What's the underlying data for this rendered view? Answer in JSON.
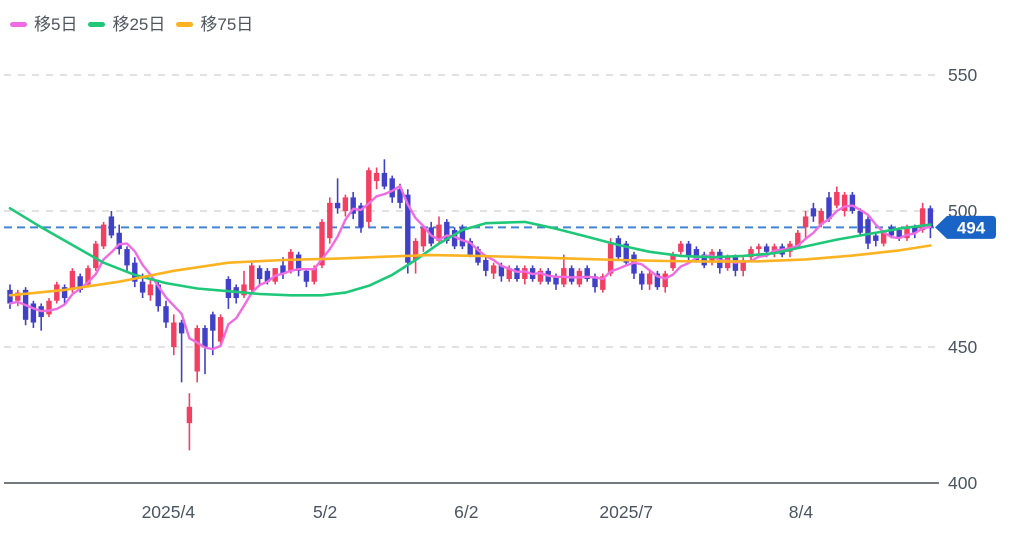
{
  "legend": {
    "items": [
      {
        "id": "ma5",
        "label": "移5日",
        "color": "#ef6ce2"
      },
      {
        "id": "ma25",
        "label": "移25日",
        "color": "#1ec878"
      },
      {
        "id": "ma75",
        "label": "移75日",
        "color": "#fbb321"
      }
    ]
  },
  "current_price": {
    "label": "494",
    "value": 494,
    "line_color": "#4484d4",
    "badge_color": "#1a64c8",
    "text_color": "#ffffff"
  },
  "colors": {
    "up_candle": "#f23f62",
    "down_candle": "#4040c8",
    "grid_line": "#d8d8d8",
    "axis_line": "#454e56",
    "tick_text": "#4a5561"
  },
  "chart_data": {
    "type": "candlestick",
    "title": "",
    "xlabel": "",
    "ylabel": "",
    "ylim": [
      400,
      550
    ],
    "grid": "dashed-horizontal",
    "legend_position": "top-left",
    "y_ticks": [
      {
        "label": "550",
        "value": 550,
        "style": "dashed"
      },
      {
        "label": "500",
        "value": 500,
        "style": "dashed"
      },
      {
        "label": "450",
        "value": 450,
        "style": "dashed"
      },
      {
        "label": "400",
        "value": 400,
        "style": "solid-axis"
      }
    ],
    "x_ticks": [
      {
        "label": "2025/4",
        "index": 20.3
      },
      {
        "label": "5/2",
        "index": 40.4
      },
      {
        "label": "6/2",
        "index": 58.5
      },
      {
        "label": "2025/7",
        "index": 79.0
      },
      {
        "label": "8/4",
        "index": 101.4
      }
    ],
    "candles_format": [
      "open",
      "high",
      "low",
      "close"
    ],
    "candles": [
      [
        471,
        473,
        464,
        466
      ],
      [
        467,
        471,
        465,
        470
      ],
      [
        471,
        472,
        458,
        460
      ],
      [
        466,
        467,
        457,
        459
      ],
      [
        465,
        466,
        456,
        461
      ],
      [
        462,
        468,
        461,
        467
      ],
      [
        467,
        474,
        466,
        473
      ],
      [
        472,
        473,
        466,
        468
      ],
      [
        471,
        479,
        470,
        478
      ],
      [
        476,
        477,
        470,
        471
      ],
      [
        473,
        480,
        472,
        479
      ],
      [
        479,
        489,
        478,
        488
      ],
      [
        487,
        496,
        486,
        495
      ],
      [
        498,
        500,
        490,
        491
      ],
      [
        492,
        495,
        484,
        486
      ],
      [
        486,
        487,
        478,
        480
      ],
      [
        481,
        483,
        472,
        474
      ],
      [
        474,
        477,
        468,
        470
      ],
      [
        469,
        475,
        467,
        473
      ],
      [
        473,
        474,
        463,
        465
      ],
      [
        465,
        467,
        457,
        459
      ],
      [
        450,
        462,
        447,
        459
      ],
      [
        459,
        460,
        437,
        455
      ],
      [
        422,
        433,
        412,
        428
      ],
      [
        441,
        458,
        437,
        457
      ],
      [
        457,
        458,
        440,
        450
      ],
      [
        462,
        463,
        447,
        456
      ],
      [
        452,
        462,
        450,
        461
      ],
      [
        475,
        476,
        464,
        468
      ],
      [
        472,
        473,
        466,
        468
      ],
      [
        469,
        478,
        468,
        473
      ],
      [
        471,
        481,
        470,
        480
      ],
      [
        479,
        480,
        473,
        475
      ],
      [
        478,
        479,
        473,
        474
      ],
      [
        474,
        479,
        473,
        479
      ],
      [
        480,
        483,
        475,
        477
      ],
      [
        478,
        486,
        477,
        485
      ],
      [
        484,
        485,
        476,
        478
      ],
      [
        478,
        479,
        472,
        474
      ],
      [
        474,
        480,
        473,
        479
      ],
      [
        480,
        497,
        479,
        496
      ],
      [
        490,
        505,
        488,
        503
      ],
      [
        503,
        512,
        499,
        501
      ],
      [
        500,
        506,
        498,
        505
      ],
      [
        505,
        507,
        497,
        499
      ],
      [
        502,
        503,
        492,
        494
      ],
      [
        496,
        516,
        494,
        515
      ],
      [
        511,
        516,
        508,
        514
      ],
      [
        514,
        519,
        508,
        509
      ],
      [
        512,
        513,
        503,
        505
      ],
      [
        508,
        510,
        501,
        503
      ],
      [
        506,
        508,
        477,
        481
      ],
      [
        482,
        490,
        477,
        489
      ],
      [
        487,
        495,
        485,
        494
      ],
      [
        494,
        496,
        487,
        488
      ],
      [
        489,
        498,
        488,
        495
      ],
      [
        496,
        497,
        488,
        489
      ],
      [
        493,
        494,
        486,
        487
      ],
      [
        494,
        495,
        486,
        487
      ],
      [
        489,
        490,
        483,
        484
      ],
      [
        486,
        487,
        480,
        481
      ],
      [
        482,
        483,
        476,
        478
      ],
      [
        477,
        481,
        475,
        480
      ],
      [
        480,
        481,
        474,
        476
      ],
      [
        475,
        480,
        474,
        479
      ],
      [
        479,
        480,
        474,
        475
      ],
      [
        475,
        480,
        473,
        479
      ],
      [
        479,
        480,
        474,
        475
      ],
      [
        474,
        479,
        473,
        478
      ],
      [
        478,
        479,
        473,
        474
      ],
      [
        476,
        477,
        471,
        473
      ],
      [
        473,
        484,
        472,
        479
      ],
      [
        479,
        480,
        473,
        474
      ],
      [
        473,
        479,
        472,
        478
      ],
      [
        479,
        480,
        474,
        475
      ],
      [
        476,
        477,
        470,
        472
      ],
      [
        471,
        477,
        470,
        476
      ],
      [
        477,
        490,
        476,
        488
      ],
      [
        490,
        491,
        482,
        483
      ],
      [
        488,
        489,
        480,
        481
      ],
      [
        484,
        485,
        475,
        477
      ],
      [
        477,
        478,
        471,
        473
      ],
      [
        473,
        478,
        471,
        477
      ],
      [
        477,
        478,
        471,
        472
      ],
      [
        472,
        478,
        470,
        477
      ],
      [
        479,
        485,
        478,
        484
      ],
      [
        485,
        489,
        484,
        488
      ],
      [
        488,
        489,
        482,
        483
      ],
      [
        486,
        487,
        481,
        482
      ],
      [
        484,
        485,
        479,
        480
      ],
      [
        481,
        486,
        480,
        485
      ],
      [
        485,
        486,
        477,
        479
      ],
      [
        479,
        484,
        478,
        483
      ],
      [
        483,
        484,
        476,
        478
      ],
      [
        478,
        483,
        476,
        482
      ],
      [
        483,
        487,
        482,
        486
      ],
      [
        486,
        488,
        484,
        487
      ],
      [
        487,
        488,
        483,
        485
      ],
      [
        485,
        488,
        483,
        487
      ],
      [
        487,
        488,
        483,
        484
      ],
      [
        485,
        489,
        483,
        488
      ],
      [
        487,
        493,
        486,
        492
      ],
      [
        494,
        500,
        490,
        498
      ],
      [
        501,
        503,
        496,
        498
      ],
      [
        495,
        501,
        494,
        500
      ],
      [
        505,
        507,
        496,
        497
      ],
      [
        502,
        509,
        501,
        507
      ],
      [
        500,
        507,
        498,
        506
      ],
      [
        506,
        507,
        499,
        500
      ],
      [
        500,
        501,
        491,
        492
      ],
      [
        497,
        498,
        486,
        488
      ],
      [
        491,
        492,
        487,
        489
      ],
      [
        488,
        493,
        487,
        492
      ],
      [
        494,
        495,
        490,
        491
      ],
      [
        493,
        494,
        489,
        490
      ],
      [
        490,
        495,
        489,
        494
      ],
      [
        494,
        495,
        490,
        492
      ],
      [
        493,
        503,
        492,
        501
      ],
      [
        501,
        502,
        490,
        494
      ]
    ],
    "overlays": [
      {
        "name": "移5日",
        "type": "sma_from_closes",
        "window": 5,
        "color": "#ef6ce2",
        "seed_closes": [
          467,
          466,
          465,
          466
        ]
      },
      {
        "name": "移25日",
        "type": "polyline",
        "color": "#1ec878",
        "points": [
          [
            0,
            501
          ],
          [
            4,
            494
          ],
          [
            8,
            487.5
          ],
          [
            12,
            481
          ],
          [
            16,
            476.5
          ],
          [
            20,
            473.5
          ],
          [
            24,
            471.5
          ],
          [
            28,
            470.5
          ],
          [
            32,
            469.5
          ],
          [
            36,
            469
          ],
          [
            40,
            469
          ],
          [
            43,
            470
          ],
          [
            46,
            472.5
          ],
          [
            49,
            476.5
          ],
          [
            52,
            482
          ],
          [
            55,
            488
          ],
          [
            58,
            493
          ],
          [
            61,
            495.5
          ],
          [
            66,
            496
          ],
          [
            70,
            493.5
          ],
          [
            74,
            490.5
          ],
          [
            78,
            487.5
          ],
          [
            82,
            485
          ],
          [
            86,
            483.5
          ],
          [
            90,
            483
          ],
          [
            94,
            483.5
          ],
          [
            98,
            484.5
          ],
          [
            102,
            487
          ],
          [
            106,
            489.5
          ],
          [
            110,
            491.5
          ],
          [
            114,
            493.5
          ],
          [
            118,
            495
          ]
        ]
      },
      {
        "name": "移75日",
        "type": "polyline",
        "color": "#fbb321",
        "points": [
          [
            0,
            469
          ],
          [
            7,
            471
          ],
          [
            14,
            474
          ],
          [
            21,
            478
          ],
          [
            28,
            481
          ],
          [
            35,
            482
          ],
          [
            42,
            482.5
          ],
          [
            48,
            483.2
          ],
          [
            54,
            483.8
          ],
          [
            60,
            483.5
          ],
          [
            66,
            483
          ],
          [
            72,
            482.5
          ],
          [
            78,
            482
          ],
          [
            84,
            481.6
          ],
          [
            90,
            481.4
          ],
          [
            96,
            481.5
          ],
          [
            102,
            482.2
          ],
          [
            108,
            483.6
          ],
          [
            114,
            485.5
          ],
          [
            118,
            487.3
          ]
        ]
      }
    ]
  }
}
